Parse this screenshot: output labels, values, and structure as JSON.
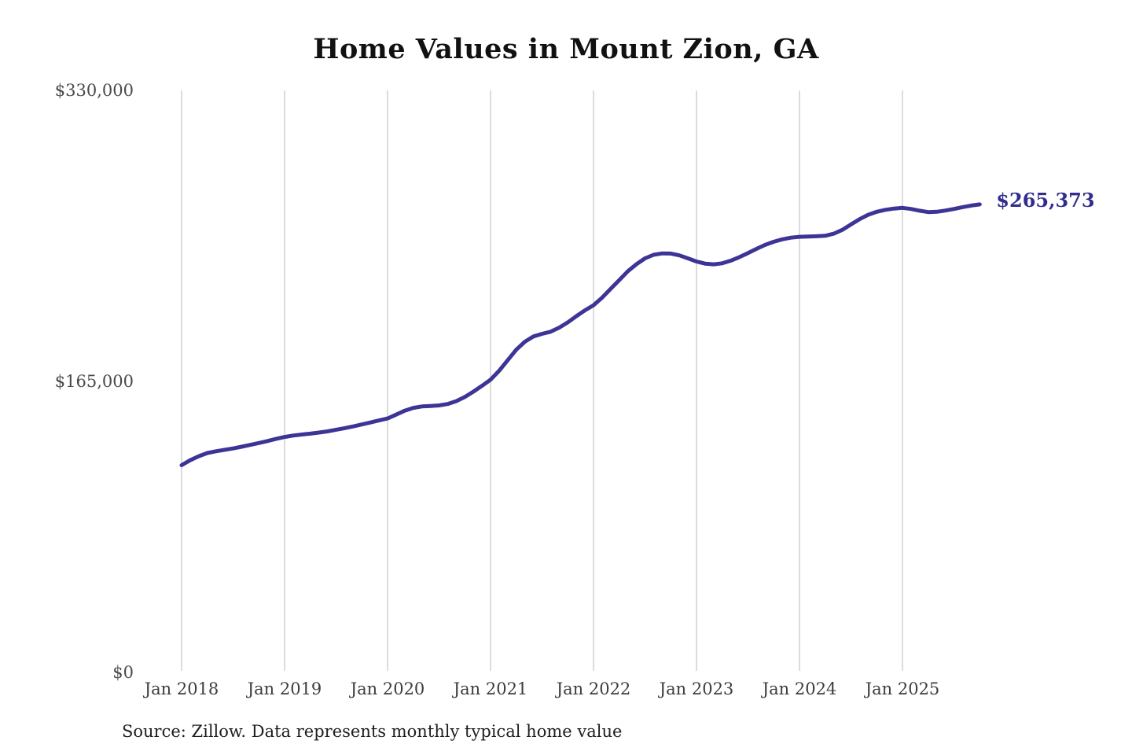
{
  "page": {
    "background": "#ffffff"
  },
  "chart_data": {
    "type": "line",
    "title": "Home Values in Mount Zion, GA",
    "source_note": "Source: Zillow. Data represents monthly typical home value",
    "end_value_label": "$265,373",
    "line_color": "#3c3596",
    "end_label_color": "#322d8c",
    "grid_color": "#c9c9c9",
    "grid": "vertical-only",
    "legend": "none",
    "x_axis": {
      "tick_labels": [
        "Jan 2018",
        "Jan 2019",
        "Jan 2020",
        "Jan 2021",
        "Jan 2022",
        "Jan 2023",
        "Jan 2024",
        "Jan 2025"
      ]
    },
    "y_axis": {
      "tick_labels": [
        "$330,000",
        "$165,000",
        "$0"
      ],
      "tick_values": [
        330000,
        165000,
        0
      ],
      "range": [
        0,
        330000
      ]
    },
    "series": [
      {
        "name": "Monthly typical home value",
        "start_month": "2018-01",
        "end_month": "2025-10",
        "final_value": 265373,
        "values": [
          117500,
          120300,
          122600,
          124400,
          125400,
          126200,
          127000,
          128000,
          129000,
          130100,
          131200,
          132400,
          133500,
          134300,
          134900,
          135400,
          136000,
          136700,
          137600,
          138500,
          139500,
          140600,
          141700,
          142900,
          144000,
          146200,
          148400,
          150000,
          150800,
          151100,
          151400,
          152200,
          153800,
          156200,
          159200,
          162500,
          166000,
          171000,
          177000,
          183000,
          187500,
          190500,
          192000,
          193200,
          195500,
          198500,
          202000,
          205300,
          208200,
          212500,
          217500,
          222500,
          227500,
          231500,
          234800,
          236800,
          237600,
          237500,
          236500,
          234800,
          233000,
          231800,
          231400,
          232000,
          233500,
          235500,
          237800,
          240200,
          242400,
          244200,
          245600,
          246500,
          247000,
          247200,
          247300,
          247600,
          248800,
          251000,
          254000,
          257000,
          259500,
          261200,
          262300,
          263000,
          263400,
          262800,
          261800,
          261000,
          261200,
          261900,
          262800,
          263800,
          264700,
          265373
        ]
      }
    ]
  }
}
